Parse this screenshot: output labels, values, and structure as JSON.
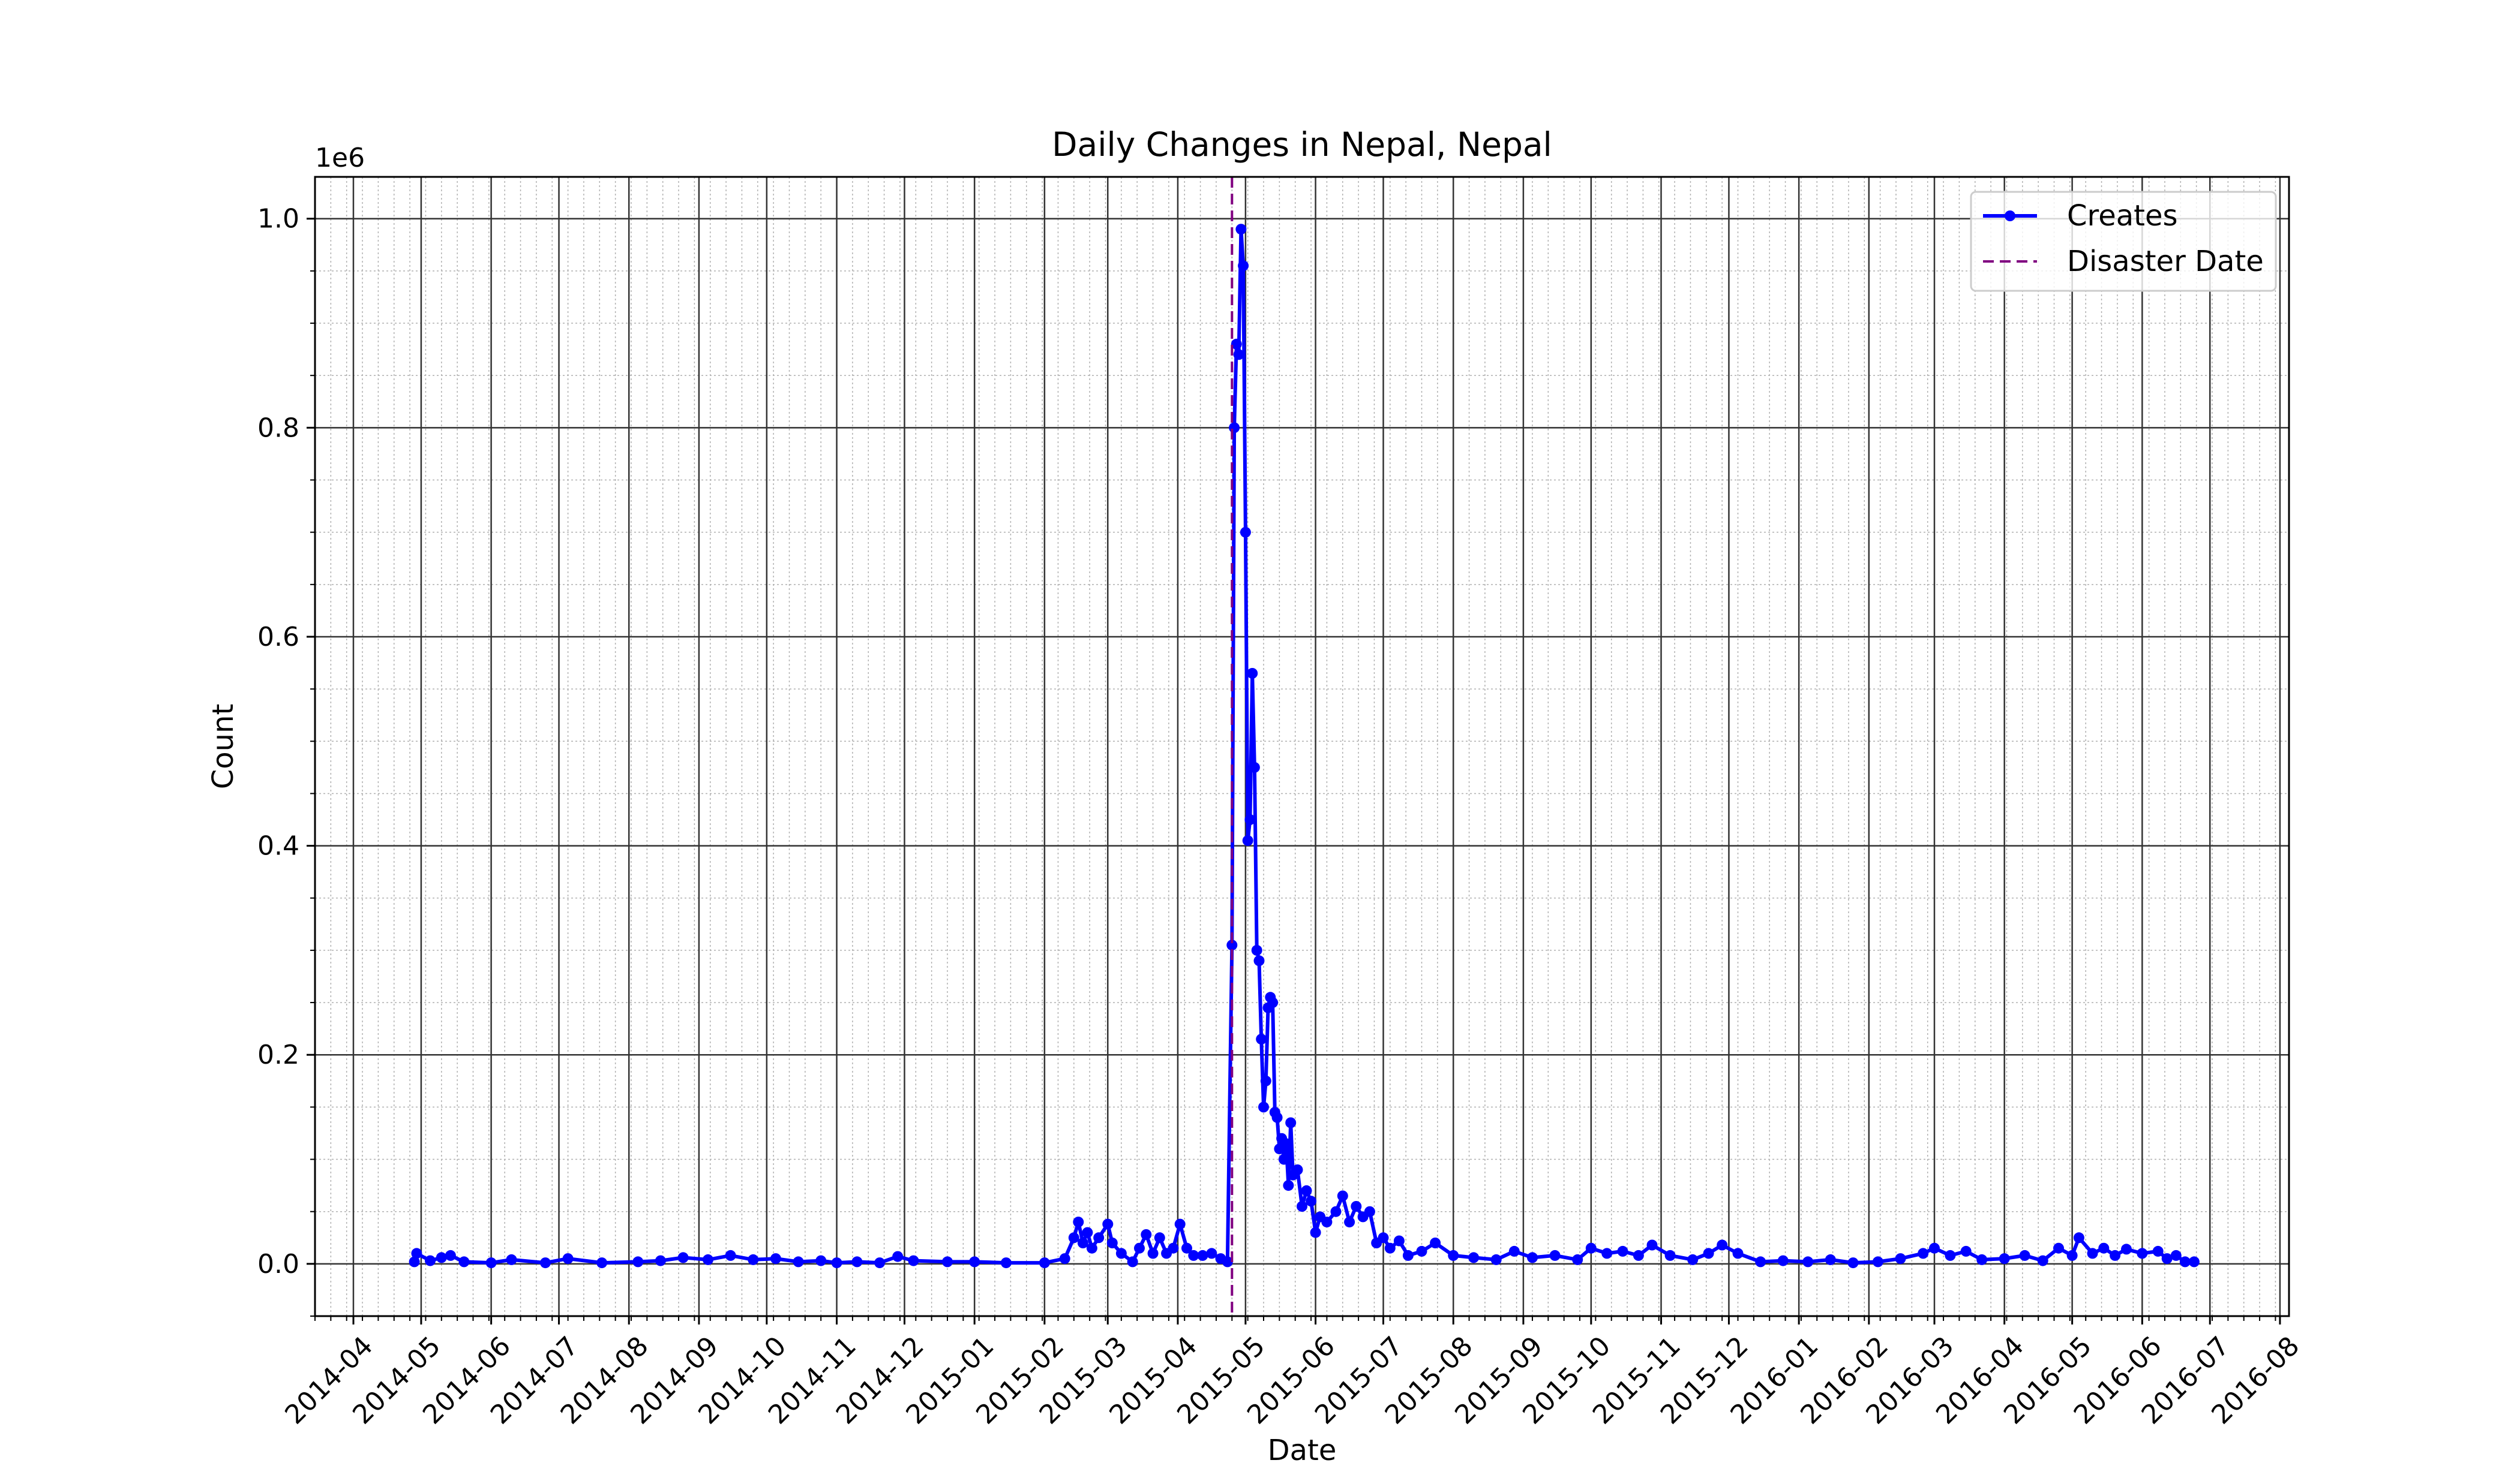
{
  "chart_data": {
    "type": "line",
    "title": "Daily Changes in Nepal, Nepal",
    "xlabel": "Date",
    "ylabel": "Count",
    "y_offset_label": "1e6",
    "xlim": [
      "2014-03-15",
      "2016-08-05"
    ],
    "ylim": [
      -50000,
      1040000
    ],
    "x_tick_labels": [
      "2014-04",
      "2014-05",
      "2014-06",
      "2014-07",
      "2014-08",
      "2014-09",
      "2014-10",
      "2014-11",
      "2014-12",
      "2015-01",
      "2015-02",
      "2015-03",
      "2015-04",
      "2015-05",
      "2015-06",
      "2015-07",
      "2015-08",
      "2015-09",
      "2015-10",
      "2015-11",
      "2015-12",
      "2016-01",
      "2016-02",
      "2016-03",
      "2016-04",
      "2016-05",
      "2016-06",
      "2016-07",
      "2016-08"
    ],
    "y_tick_labels": [
      "0.0",
      "0.2",
      "0.4",
      "0.6",
      "0.8",
      "1.0"
    ],
    "y_tick_values": [
      0,
      200000,
      400000,
      600000,
      800000,
      1000000
    ],
    "grid": true,
    "legend_position": "top-right",
    "series": [
      {
        "name": "Creates",
        "color": "#0000ff",
        "marker": "circle",
        "points": [
          [
            "2014-04-28",
            2000
          ],
          [
            "2014-04-29",
            10000
          ],
          [
            "2014-05-05",
            3000
          ],
          [
            "2014-05-10",
            6000
          ],
          [
            "2014-05-14",
            8000
          ],
          [
            "2014-05-20",
            2000
          ],
          [
            "2014-06-01",
            1000
          ],
          [
            "2014-06-10",
            4000
          ],
          [
            "2014-06-25",
            1000
          ],
          [
            "2014-07-05",
            5000
          ],
          [
            "2014-07-20",
            1000
          ],
          [
            "2014-08-05",
            2000
          ],
          [
            "2014-08-15",
            3000
          ],
          [
            "2014-08-25",
            6000
          ],
          [
            "2014-09-05",
            4000
          ],
          [
            "2014-09-15",
            8000
          ],
          [
            "2014-09-25",
            4000
          ],
          [
            "2014-10-05",
            5000
          ],
          [
            "2014-10-15",
            2000
          ],
          [
            "2014-10-25",
            3000
          ],
          [
            "2014-11-01",
            1000
          ],
          [
            "2014-11-10",
            2000
          ],
          [
            "2014-11-20",
            1000
          ],
          [
            "2014-11-28",
            7000
          ],
          [
            "2014-12-05",
            3000
          ],
          [
            "2014-12-20",
            2000
          ],
          [
            "2015-01-01",
            2000
          ],
          [
            "2015-01-15",
            1000
          ],
          [
            "2015-02-01",
            1000
          ],
          [
            "2015-02-10",
            5000
          ],
          [
            "2015-02-14",
            25000
          ],
          [
            "2015-02-16",
            40000
          ],
          [
            "2015-02-18",
            20000
          ],
          [
            "2015-02-20",
            30000
          ],
          [
            "2015-02-22",
            15000
          ],
          [
            "2015-02-25",
            25000
          ],
          [
            "2015-03-01",
            38000
          ],
          [
            "2015-03-03",
            20000
          ],
          [
            "2015-03-07",
            10000
          ],
          [
            "2015-03-12",
            2000
          ],
          [
            "2015-03-15",
            15000
          ],
          [
            "2015-03-18",
            28000
          ],
          [
            "2015-03-21",
            10000
          ],
          [
            "2015-03-24",
            25000
          ],
          [
            "2015-03-27",
            10000
          ],
          [
            "2015-03-30",
            15000
          ],
          [
            "2015-04-02",
            38000
          ],
          [
            "2015-04-05",
            15000
          ],
          [
            "2015-04-08",
            8000
          ],
          [
            "2015-04-12",
            8000
          ],
          [
            "2015-04-16",
            10000
          ],
          [
            "2015-04-20",
            5000
          ],
          [
            "2015-04-23",
            2000
          ],
          [
            "2015-04-25",
            305000
          ],
          [
            "2015-04-26",
            800000
          ],
          [
            "2015-04-27",
            880000
          ],
          [
            "2015-04-28",
            870000
          ],
          [
            "2015-04-29",
            990000
          ],
          [
            "2015-04-30",
            955000
          ],
          [
            "2015-05-01",
            700000
          ],
          [
            "2015-05-02",
            405000
          ],
          [
            "2015-05-03",
            425000
          ],
          [
            "2015-05-04",
            565000
          ],
          [
            "2015-05-05",
            475000
          ],
          [
            "2015-05-06",
            300000
          ],
          [
            "2015-05-07",
            290000
          ],
          [
            "2015-05-08",
            215000
          ],
          [
            "2015-05-09",
            150000
          ],
          [
            "2015-05-10",
            175000
          ],
          [
            "2015-05-11",
            245000
          ],
          [
            "2015-05-12",
            255000
          ],
          [
            "2015-05-13",
            250000
          ],
          [
            "2015-05-14",
            145000
          ],
          [
            "2015-05-15",
            140000
          ],
          [
            "2015-05-16",
            110000
          ],
          [
            "2015-05-17",
            120000
          ],
          [
            "2015-05-18",
            100000
          ],
          [
            "2015-05-19",
            115000
          ],
          [
            "2015-05-20",
            75000
          ],
          [
            "2015-05-21",
            135000
          ],
          [
            "2015-05-22",
            85000
          ],
          [
            "2015-05-24",
            90000
          ],
          [
            "2015-05-26",
            55000
          ],
          [
            "2015-05-28",
            70000
          ],
          [
            "2015-05-30",
            60000
          ],
          [
            "2015-06-01",
            30000
          ],
          [
            "2015-06-03",
            45000
          ],
          [
            "2015-06-06",
            40000
          ],
          [
            "2015-06-10",
            50000
          ],
          [
            "2015-06-13",
            65000
          ],
          [
            "2015-06-16",
            40000
          ],
          [
            "2015-06-19",
            55000
          ],
          [
            "2015-06-22",
            45000
          ],
          [
            "2015-06-25",
            50000
          ],
          [
            "2015-06-28",
            20000
          ],
          [
            "2015-07-01",
            25000
          ],
          [
            "2015-07-04",
            15000
          ],
          [
            "2015-07-08",
            22000
          ],
          [
            "2015-07-12",
            8000
          ],
          [
            "2015-07-18",
            12000
          ],
          [
            "2015-07-24",
            20000
          ],
          [
            "2015-08-01",
            8000
          ],
          [
            "2015-08-10",
            6000
          ],
          [
            "2015-08-20",
            4000
          ],
          [
            "2015-08-28",
            12000
          ],
          [
            "2015-09-05",
            6000
          ],
          [
            "2015-09-15",
            8000
          ],
          [
            "2015-09-25",
            4000
          ],
          [
            "2015-10-01",
            15000
          ],
          [
            "2015-10-08",
            10000
          ],
          [
            "2015-10-15",
            12000
          ],
          [
            "2015-10-22",
            8000
          ],
          [
            "2015-10-28",
            18000
          ],
          [
            "2015-11-05",
            8000
          ],
          [
            "2015-11-15",
            4000
          ],
          [
            "2015-11-22",
            10000
          ],
          [
            "2015-11-28",
            18000
          ],
          [
            "2015-12-05",
            10000
          ],
          [
            "2015-12-15",
            2000
          ],
          [
            "2015-12-25",
            3000
          ],
          [
            "2016-01-05",
            2000
          ],
          [
            "2016-01-15",
            4000
          ],
          [
            "2016-01-25",
            1000
          ],
          [
            "2016-02-05",
            2000
          ],
          [
            "2016-02-15",
            5000
          ],
          [
            "2016-02-25",
            10000
          ],
          [
            "2016-03-01",
            15000
          ],
          [
            "2016-03-08",
            8000
          ],
          [
            "2016-03-15",
            12000
          ],
          [
            "2016-03-22",
            4000
          ],
          [
            "2016-04-01",
            5000
          ],
          [
            "2016-04-10",
            8000
          ],
          [
            "2016-04-18",
            3000
          ],
          [
            "2016-04-25",
            15000
          ],
          [
            "2016-05-01",
            8000
          ],
          [
            "2016-05-04",
            25000
          ],
          [
            "2016-05-10",
            10000
          ],
          [
            "2016-05-15",
            15000
          ],
          [
            "2016-05-20",
            8000
          ],
          [
            "2016-05-25",
            14000
          ],
          [
            "2016-06-01",
            10000
          ],
          [
            "2016-06-08",
            12000
          ],
          [
            "2016-06-12",
            5000
          ],
          [
            "2016-06-16",
            8000
          ],
          [
            "2016-06-20",
            2000
          ],
          [
            "2016-06-24",
            2000
          ]
        ]
      },
      {
        "name": "Disaster Date",
        "color": "#800080",
        "style": "dashed",
        "x": "2015-04-25"
      }
    ]
  }
}
